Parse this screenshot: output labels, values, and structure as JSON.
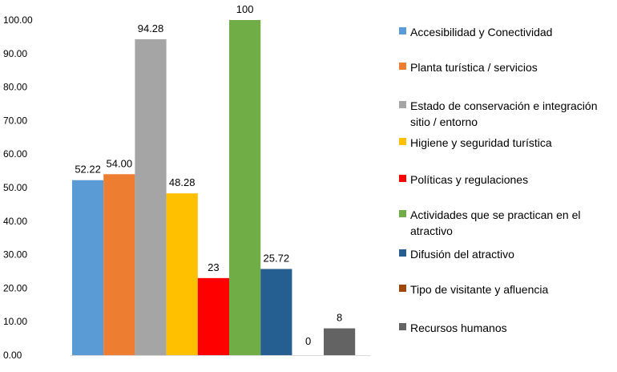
{
  "chart_data": {
    "type": "bar",
    "title": "",
    "xlabel": "",
    "ylabel": "",
    "ylim": [
      0,
      100
    ],
    "yticks": [
      "0.00",
      "10.00",
      "20.00",
      "30.00",
      "40.00",
      "50.00",
      "60.00",
      "70.00",
      "80.00",
      "90.00",
      "100.00"
    ],
    "grid": false,
    "legend_position": "right",
    "series": [
      {
        "name": "Accesibilidad y Conectividad",
        "value": 52.22,
        "label": "52.22",
        "color": "#5b9bd5"
      },
      {
        "name": "Planta turística / servicios",
        "value": 54.0,
        "label": "54.00",
        "color": "#ed7d31"
      },
      {
        "name": "Estado de conservación e integración sitio / entorno",
        "value": 94.28,
        "label": "94.28",
        "color": "#a5a5a5"
      },
      {
        "name": "Higiene y seguridad turística",
        "value": 48.28,
        "label": "48.28",
        "color": "#ffc000"
      },
      {
        "name": "Políticas y regulaciones",
        "value": 23,
        "label": "23",
        "color": "#ff0000"
      },
      {
        "name": "Actividades que se practican en el atractivo",
        "value": 100,
        "label": "100",
        "color": "#70ad47"
      },
      {
        "name": "Difusión del atractivo",
        "value": 25.72,
        "label": "25.72",
        "color": "#255e91"
      },
      {
        "name": "Tipo de visitante y afluencia",
        "value": 0,
        "label": "0",
        "color": "#9e480e"
      },
      {
        "name": "Recursos humanos",
        "value": 8,
        "label": "8",
        "color": "#636363"
      }
    ]
  }
}
